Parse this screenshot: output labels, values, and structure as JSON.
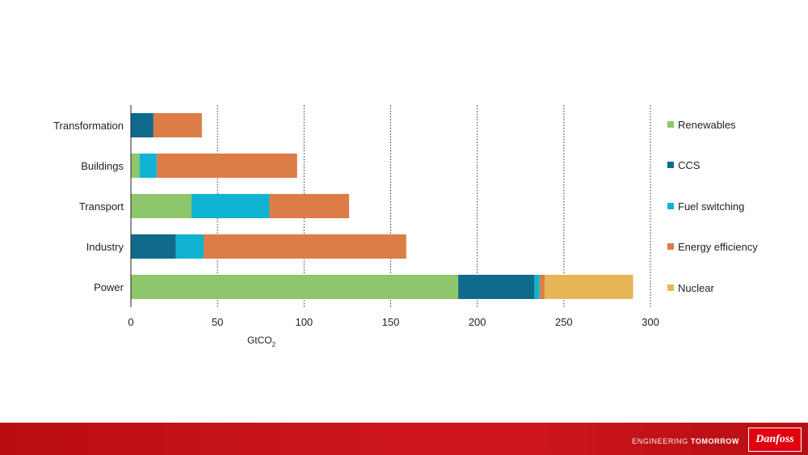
{
  "chart_data": {
    "type": "bar",
    "orientation": "horizontal",
    "stacked": true,
    "categories": [
      "Transformation",
      "Buildings",
      "Transport",
      "Industry",
      "Power"
    ],
    "series": [
      {
        "name": "Renewables",
        "color": "#8dc66b",
        "values": [
          0,
          5,
          35,
          0,
          189
        ]
      },
      {
        "name": "CCS",
        "color": "#0f6a8c",
        "values": [
          13,
          0,
          0,
          26,
          44
        ]
      },
      {
        "name": "Fuel switching",
        "color": "#10b3d1",
        "values": [
          0,
          10,
          45,
          16,
          3
        ]
      },
      {
        "name": "Energy efficiency",
        "color": "#dc7d47",
        "values": [
          28,
          81,
          46,
          117,
          3
        ]
      },
      {
        "name": "Nuclear",
        "color": "#e6b756",
        "values": [
          0,
          0,
          0,
          0,
          51
        ]
      }
    ],
    "xlabel": "GtCO",
    "xlabel_subscript": "2",
    "xlim": [
      0,
      300
    ],
    "xticks": [
      0,
      50,
      100,
      150,
      200,
      250,
      300
    ],
    "grid": "vertical-dotted",
    "legend_position": "right"
  },
  "footer": {
    "tagline_light": "ENGINEERING",
    "tagline_bold": "TOMORROW",
    "logo_text": "Danfoss"
  }
}
